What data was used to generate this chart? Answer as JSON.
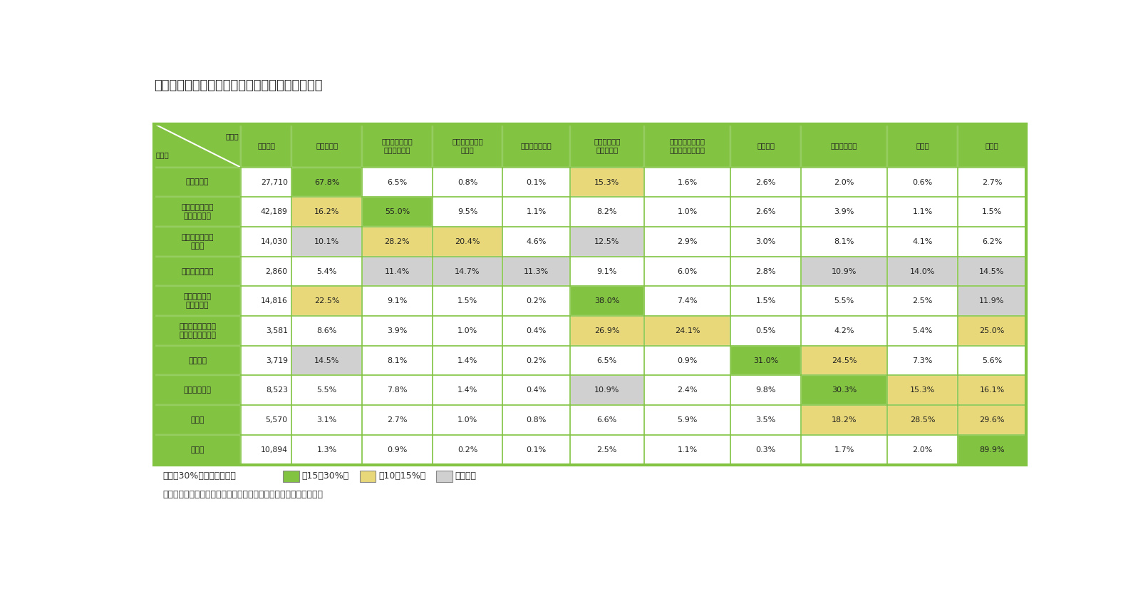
{
  "title": "図表５　１回目のメタボ判定結果別５年後の判定",
  "header_col_labels": [
    "５年後\n１回目",
    "対象者数",
    "メタボなし",
    "判定不能（未受\n診項目あり）",
    "腹囲なしメタボ\n予備群",
    "腹囲なしメタボ",
    "腹囲基準内メ\nタボ予備群",
    "腹囲基準内メタボ\n（かくれメタボ）",
    "腹囲だけ",
    "メタボ予備群",
    "メタボ",
    "服薬中"
  ],
  "row_labels": [
    "メタボなし",
    "判定不能（未受\n診項目あり）",
    "腹囲なしメタボ\n予備群",
    "腹囲なしメタボ",
    "腹囲基準内メ\nタボ予備群",
    "腹囲基準内メタボ\n（かくれメタボ）",
    "腹囲だけ",
    "メタボ予備群",
    "メタボ",
    "服薬中"
  ],
  "counts": [
    27710,
    42189,
    14030,
    2860,
    14816,
    3581,
    3719,
    8523,
    5570,
    10894
  ],
  "data": [
    [
      "67.8%",
      "6.5%",
      "0.8%",
      "0.1%",
      "15.3%",
      "1.6%",
      "2.6%",
      "2.0%",
      "0.6%",
      "2.7%"
    ],
    [
      "16.2%",
      "55.0%",
      "9.5%",
      "1.1%",
      "8.2%",
      "1.0%",
      "2.6%",
      "3.9%",
      "1.1%",
      "1.5%"
    ],
    [
      "10.1%",
      "28.2%",
      "20.4%",
      "4.6%",
      "12.5%",
      "2.9%",
      "3.0%",
      "8.1%",
      "4.1%",
      "6.2%"
    ],
    [
      "5.4%",
      "11.4%",
      "14.7%",
      "11.3%",
      "9.1%",
      "6.0%",
      "2.8%",
      "10.9%",
      "14.0%",
      "14.5%"
    ],
    [
      "22.5%",
      "9.1%",
      "1.5%",
      "0.2%",
      "38.0%",
      "7.4%",
      "1.5%",
      "5.5%",
      "2.5%",
      "11.9%"
    ],
    [
      "8.6%",
      "3.9%",
      "1.0%",
      "0.4%",
      "26.9%",
      "24.1%",
      "0.5%",
      "4.2%",
      "5.4%",
      "25.0%"
    ],
    [
      "14.5%",
      "8.1%",
      "1.4%",
      "0.2%",
      "6.5%",
      "0.9%",
      "31.0%",
      "24.5%",
      "7.3%",
      "5.6%"
    ],
    [
      "5.5%",
      "7.8%",
      "1.4%",
      "0.4%",
      "10.9%",
      "2.4%",
      "9.8%",
      "30.3%",
      "15.3%",
      "16.1%"
    ],
    [
      "3.1%",
      "2.7%",
      "1.0%",
      "0.8%",
      "6.6%",
      "5.9%",
      "3.5%",
      "18.2%",
      "28.5%",
      "29.6%"
    ],
    [
      "1.3%",
      "0.9%",
      "0.2%",
      "0.1%",
      "2.5%",
      "1.1%",
      "0.3%",
      "1.7%",
      "2.0%",
      "89.9%"
    ]
  ],
  "color_above30": "#82c341",
  "color_15to30": "#e8d87a",
  "color_10to15": "#d0d0d0",
  "color_white": "#ffffff",
  "header_bg": "#82c341",
  "border_color": "#82c341",
  "note1_pre": "（注）30%を超える数値に",
  "note1_mid1": "、15～30%に",
  "note1_mid2": "、10～15%に",
  "note1_post": "で網掛け",
  "note2": "（資料）日本医療データセンターのデータを使用して筆者が作成。"
}
